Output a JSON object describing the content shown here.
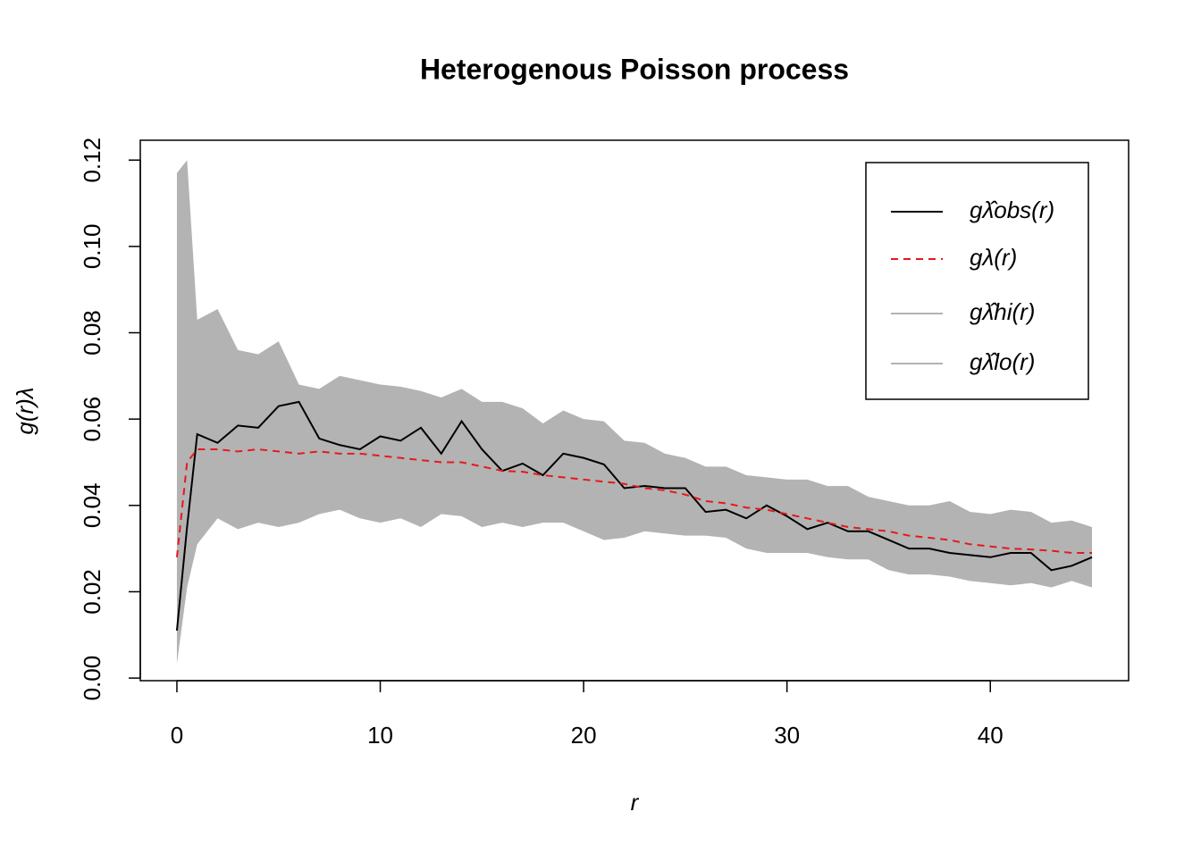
{
  "chart_data": {
    "type": "line",
    "title": "Heterogenous Poisson process",
    "xlabel": "r",
    "ylabel": "g(r)λ",
    "x": [
      0,
      0.5,
      1,
      2,
      3,
      4,
      5,
      6,
      7,
      8,
      9,
      10,
      11,
      12,
      13,
      14,
      15,
      16,
      17,
      18,
      19,
      20,
      21,
      22,
      23,
      24,
      25,
      26,
      27,
      28,
      29,
      30,
      31,
      32,
      33,
      34,
      35,
      36,
      37,
      38,
      39,
      40,
      41,
      42,
      43,
      44,
      45
    ],
    "series": [
      {
        "name": "gλ̂obs(r)",
        "color": "#000000",
        "linestyle": "solid",
        "values": [
          0.011,
          0.035,
          0.0565,
          0.0545,
          0.0585,
          0.058,
          0.063,
          0.064,
          0.0555,
          0.054,
          0.053,
          0.056,
          0.055,
          0.058,
          0.052,
          0.0595,
          0.053,
          0.048,
          0.0497,
          0.047,
          0.052,
          0.051,
          0.0495,
          0.044,
          0.0445,
          0.044,
          0.044,
          0.0385,
          0.039,
          0.037,
          0.04,
          0.0375,
          0.0345,
          0.036,
          0.034,
          0.034,
          0.032,
          0.03,
          0.03,
          0.029,
          0.0285,
          0.028,
          0.029,
          0.029,
          0.025,
          0.026,
          0.028
        ]
      },
      {
        "name": "gλ(r)",
        "color": "#e41a1c",
        "linestyle": "dashed",
        "values": [
          0.028,
          0.05,
          0.053,
          0.053,
          0.0525,
          0.053,
          0.0525,
          0.052,
          0.0525,
          0.052,
          0.052,
          0.0515,
          0.051,
          0.0505,
          0.05,
          0.05,
          0.049,
          0.048,
          0.0478,
          0.047,
          0.0465,
          0.046,
          0.0455,
          0.045,
          0.044,
          0.0435,
          0.0425,
          0.041,
          0.0405,
          0.0395,
          0.039,
          0.038,
          0.037,
          0.036,
          0.035,
          0.0345,
          0.034,
          0.033,
          0.0325,
          0.032,
          0.031,
          0.0305,
          0.03,
          0.0298,
          0.0295,
          0.029,
          0.029
        ]
      },
      {
        "name": "gλ̂hi(r)",
        "color": "#b3b3b3",
        "linestyle": "solid",
        "band": true,
        "values": [
          0.117,
          0.12,
          0.083,
          0.0855,
          0.076,
          0.075,
          0.078,
          0.068,
          0.067,
          0.07,
          0.069,
          0.068,
          0.0675,
          0.0665,
          0.065,
          0.067,
          0.064,
          0.064,
          0.0625,
          0.059,
          0.062,
          0.06,
          0.0595,
          0.055,
          0.0545,
          0.052,
          0.051,
          0.049,
          0.049,
          0.047,
          0.0465,
          0.046,
          0.046,
          0.0445,
          0.0445,
          0.042,
          0.041,
          0.04,
          0.04,
          0.041,
          0.0385,
          0.038,
          0.039,
          0.0385,
          0.036,
          0.0365,
          0.035
        ]
      },
      {
        "name": "gλ̂lo(r)",
        "color": "#b3b3b3",
        "linestyle": "solid",
        "band": true,
        "values": [
          0.0033,
          0.021,
          0.031,
          0.037,
          0.0345,
          0.036,
          0.035,
          0.036,
          0.038,
          0.039,
          0.037,
          0.036,
          0.037,
          0.035,
          0.038,
          0.0375,
          0.035,
          0.036,
          0.035,
          0.036,
          0.036,
          0.034,
          0.032,
          0.0325,
          0.034,
          0.0335,
          0.033,
          0.033,
          0.0325,
          0.03,
          0.029,
          0.029,
          0.029,
          0.028,
          0.0275,
          0.0275,
          0.025,
          0.024,
          0.024,
          0.0235,
          0.0225,
          0.022,
          0.0215,
          0.022,
          0.021,
          0.0225,
          0.021
        ]
      }
    ],
    "xlim": [
      -1.8,
      46.8
    ],
    "xticks": [
      0,
      10,
      20,
      30,
      40
    ],
    "ylim": [
      -0.0006,
      0.1246
    ],
    "yticks": [
      {
        "value": 0,
        "label": "0.00"
      },
      {
        "value": 0.02,
        "label": "0.02"
      },
      {
        "value": 0.04,
        "label": "0.04"
      },
      {
        "value": 0.06,
        "label": "0.06"
      },
      {
        "value": 0.08,
        "label": "0.08"
      },
      {
        "value": 0.1,
        "label": "0.10"
      },
      {
        "value": 0.12,
        "label": "0.12"
      }
    ],
    "legend": "top-right"
  }
}
